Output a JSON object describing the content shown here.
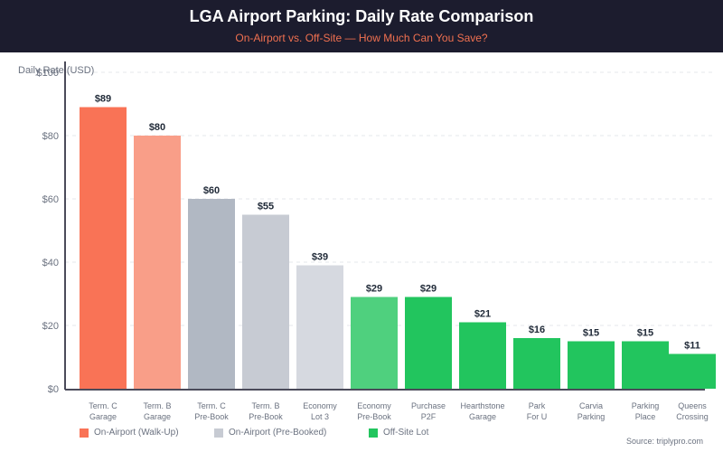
{
  "header": {
    "title": "LGA Airport Parking: Daily Rate Comparison",
    "subtitle": "On-Airport vs. Off-Site — How Much Can You Save?"
  },
  "colors": {
    "walkup_primary": "#f97356",
    "walkup_secondary": "#f99e88",
    "prebook_primary": "#b1b8c3",
    "prebook_secondary": "#c7cbd3",
    "prebook_tertiary": "#d6d9e0",
    "offsite_light": "#4fd07e",
    "offsite": "#22c55e"
  },
  "chart_data": {
    "type": "bar",
    "title": "LGA Airport Parking: Daily Rate Comparison",
    "subtitle": "On-Airport vs. Off-Site — How Much Can You Save?",
    "xlabel": "",
    "ylabel": "Daily Rate (USD)",
    "ylim": [
      0,
      100
    ],
    "yticks": [
      0,
      20,
      40,
      60,
      80,
      100
    ],
    "ytick_labels": [
      "$0",
      "$20",
      "$40",
      "$60",
      "$80",
      "$100"
    ],
    "grid": true,
    "legend_position": "bottom-left",
    "categories": [
      [
        "Term. C",
        "Garage"
      ],
      [
        "Term. B",
        "Garage"
      ],
      [
        "Term. C",
        "Pre-Book"
      ],
      [
        "Term. B",
        "Pre-Book"
      ],
      [
        "Economy",
        "Lot 3"
      ],
      [
        "Economy",
        "Pre-Book"
      ],
      [
        "Purchase",
        "P2F"
      ],
      [
        "Hearthstone",
        "Garage"
      ],
      [
        "Park",
        "For U"
      ],
      [
        "Carvia",
        "Parking"
      ],
      [
        "Parking",
        "Place"
      ],
      [
        "Queens",
        "Crossing"
      ]
    ],
    "values": [
      89,
      80,
      60,
      55,
      39,
      29,
      29,
      21,
      16,
      15,
      15,
      11
    ],
    "data_labels": [
      "$89",
      "$80",
      "$60",
      "$55",
      "$39",
      "$29",
      "$29",
      "$21",
      "$16",
      "$15",
      "$15",
      "$11"
    ],
    "bar_groups": [
      "walkup",
      "walkup",
      "prebook",
      "prebook",
      "prebook",
      "offsite",
      "offsite",
      "offsite",
      "offsite",
      "offsite",
      "offsite",
      "offsite"
    ],
    "bar_colors": [
      "walkup_primary",
      "walkup_secondary",
      "prebook_primary",
      "prebook_secondary",
      "prebook_tertiary",
      "offsite_light",
      "offsite",
      "offsite",
      "offsite",
      "offsite",
      "offsite",
      "offsite"
    ],
    "legend": [
      {
        "label": "On-Airport (Walk-Up)",
        "color": "walkup_primary"
      },
      {
        "label": "On-Airport (Pre-Booked)",
        "color": "prebook_secondary"
      },
      {
        "label": "Off-Site Lot",
        "color": "offsite"
      }
    ]
  },
  "source": "Source: triplypro.com"
}
